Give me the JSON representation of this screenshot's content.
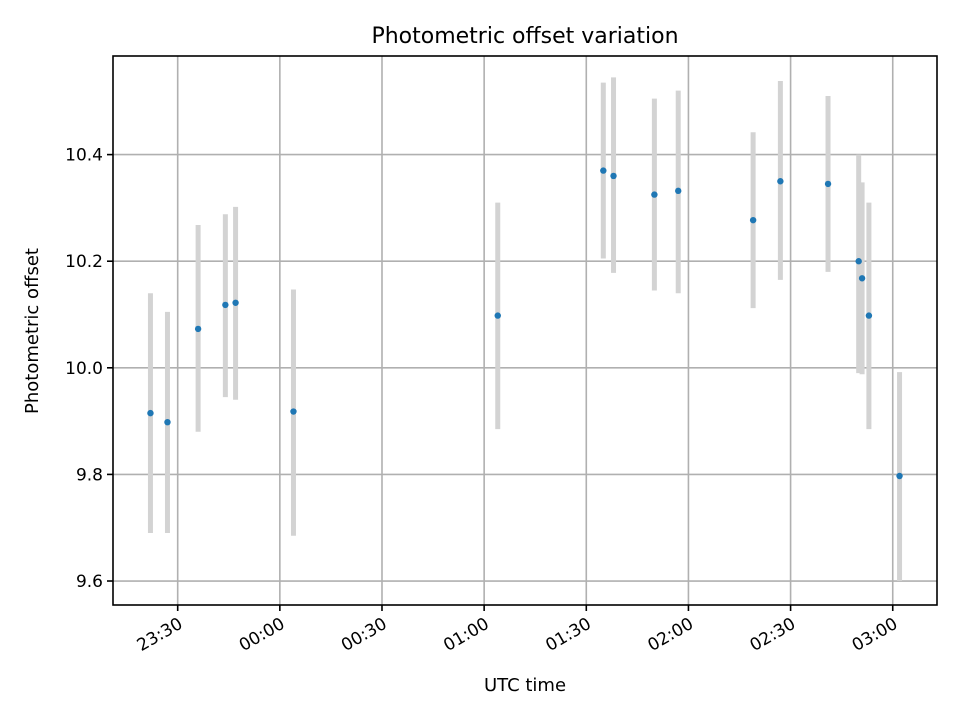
{
  "chart_data": {
    "type": "scatter",
    "title": "Photometric offset variation",
    "xlabel": "UTC time",
    "ylabel": "Photometric offset",
    "x_axis": {
      "kind": "time",
      "range": [
        "23:11",
        "03:13"
      ],
      "ticks": [
        "23:30",
        "00:00",
        "00:30",
        "01:00",
        "01:30",
        "02:00",
        "02:30",
        "03:00"
      ]
    },
    "y_axis": {
      "range": [
        9.555,
        10.585
      ],
      "ticks": [
        9.6,
        9.8,
        10.0,
        10.2,
        10.4
      ],
      "tick_labels": [
        "9.6",
        "9.8",
        "10.0",
        "10.2",
        "10.4"
      ]
    },
    "grid": true,
    "colors": {
      "point": "#1f77b4",
      "errorbar": "#d3d3d3",
      "grid": "#b0b0b0"
    },
    "points": [
      {
        "t": "23:22",
        "y": 9.915,
        "err_low": 9.69,
        "err_high": 10.14
      },
      {
        "t": "23:27",
        "y": 9.898,
        "err_low": 9.69,
        "err_high": 10.105
      },
      {
        "t": "23:36",
        "y": 10.073,
        "err_low": 9.88,
        "err_high": 10.268
      },
      {
        "t": "23:44",
        "y": 10.118,
        "err_low": 9.945,
        "err_high": 10.288
      },
      {
        "t": "23:47",
        "y": 10.122,
        "err_low": 9.94,
        "err_high": 10.302
      },
      {
        "t": "00:04",
        "y": 9.918,
        "err_low": 9.685,
        "err_high": 10.147
      },
      {
        "t": "01:04",
        "y": 10.098,
        "err_low": 9.885,
        "err_high": 10.31
      },
      {
        "t": "01:35",
        "y": 10.37,
        "err_low": 10.205,
        "err_high": 10.535
      },
      {
        "t": "01:38",
        "y": 10.36,
        "err_low": 10.178,
        "err_high": 10.545
      },
      {
        "t": "01:50",
        "y": 10.325,
        "err_low": 10.145,
        "err_high": 10.505
      },
      {
        "t": "01:57",
        "y": 10.332,
        "err_low": 10.14,
        "err_high": 10.52
      },
      {
        "t": "02:19",
        "y": 10.277,
        "err_low": 10.112,
        "err_high": 10.442
      },
      {
        "t": "02:27",
        "y": 10.35,
        "err_low": 10.165,
        "err_high": 10.538
      },
      {
        "t": "02:41",
        "y": 10.345,
        "err_low": 10.18,
        "err_high": 10.51
      },
      {
        "t": "02:50",
        "y": 10.2,
        "err_low": 9.99,
        "err_high": 10.4
      },
      {
        "t": "02:51",
        "y": 10.168,
        "err_low": 9.988,
        "err_high": 10.348
      },
      {
        "t": "02:53",
        "y": 10.098,
        "err_low": 9.885,
        "err_high": 10.31
      },
      {
        "t": "03:02",
        "y": 9.797,
        "err_low": 9.6,
        "err_high": 9.992
      }
    ]
  }
}
